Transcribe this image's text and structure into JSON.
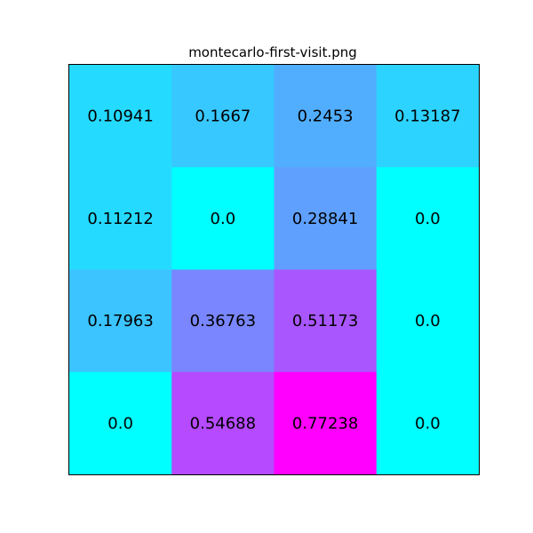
{
  "chart_data": {
    "type": "heatmap",
    "title": "montecarlo-first-visit.png",
    "rows": 4,
    "cols": 4,
    "values": [
      [
        0.10941,
        0.1667,
        0.2453,
        0.13187
      ],
      [
        0.11212,
        0.0,
        0.28841,
        0.0
      ],
      [
        0.17963,
        0.36763,
        0.51173,
        0.0
      ],
      [
        0.0,
        0.54688,
        0.77238,
        0.0
      ]
    ],
    "labels": [
      [
        "0.10941",
        "0.1667",
        "0.2453",
        "0.13187"
      ],
      [
        "0.11212",
        "0.0",
        "0.28841",
        "0.0"
      ],
      [
        "0.17963",
        "0.36763",
        "0.51173",
        "0.0"
      ],
      [
        "0.0",
        "0.54688",
        "0.77238",
        "0.0"
      ]
    ],
    "colormap": "cool",
    "colormap_range": [
      0.0,
      0.77238
    ],
    "colormap_low_color": "#00ffff",
    "colormap_high_color": "#ff00ff",
    "frame_color": "#000000",
    "grid": false,
    "axis_ticks": false
  }
}
